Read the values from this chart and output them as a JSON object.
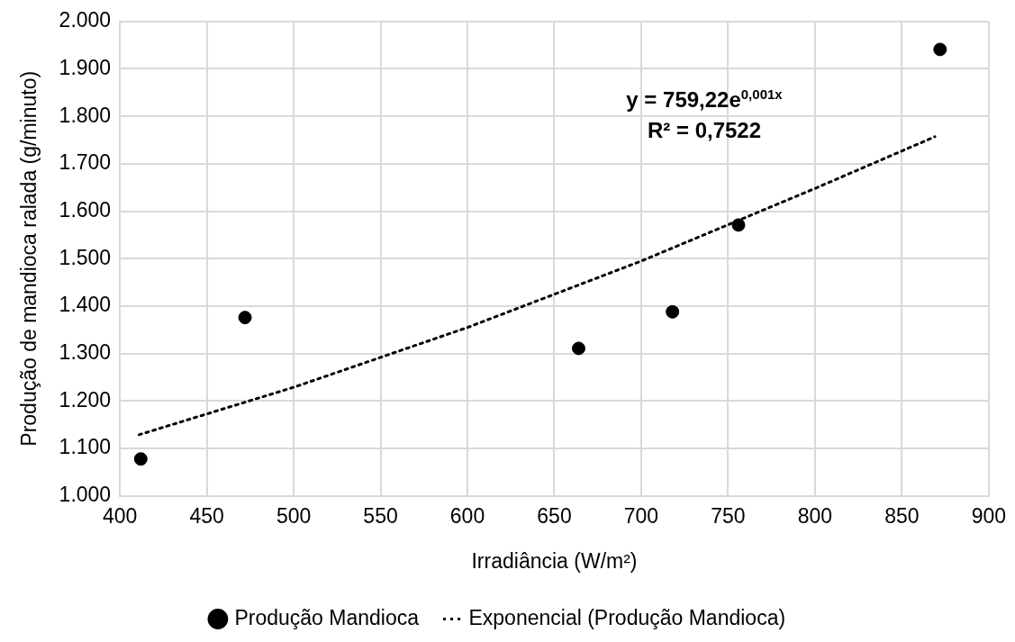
{
  "chart_data": {
    "type": "scatter",
    "xlabel": "Irradiância (W/m²)",
    "ylabel": "Produção de mandioca ralada (g/minuto)",
    "xlim": [
      400,
      900
    ],
    "xticks": [
      400,
      450,
      500,
      550,
      600,
      650,
      700,
      750,
      800,
      850,
      900
    ],
    "ylim": [
      1000,
      2000
    ],
    "yticks": [
      {
        "value": 1000,
        "label": "1.000"
      },
      {
        "value": 1100,
        "label": "1.100"
      },
      {
        "value": 1200,
        "label": "1.200"
      },
      {
        "value": 1300,
        "label": "1.300"
      },
      {
        "value": 1400,
        "label": "1.400"
      },
      {
        "value": 1500,
        "label": "1.500"
      },
      {
        "value": 1600,
        "label": "1.600"
      },
      {
        "value": 1700,
        "label": "1.700"
      },
      {
        "value": 1800,
        "label": "1.800"
      },
      {
        "value": 1900,
        "label": "1.900"
      },
      {
        "value": 2000,
        "label": "2.000"
      }
    ],
    "grid": true,
    "legend": "bottom",
    "series": [
      {
        "name": "Produção Mandioca",
        "color": "#000000",
        "marker": "circle",
        "x": [
          412,
          472,
          664,
          718,
          756,
          872
        ],
        "values": [
          1078,
          1376,
          1311,
          1388,
          1571,
          1941
        ]
      },
      {
        "name": "Exponencial (Produção Mandioca)",
        "type": "line",
        "color": "#000000",
        "marker": "none",
        "line_style": "dotted",
        "x": [
          411,
          500,
          600,
          700,
          800,
          869
        ],
        "values": [
          1129,
          1229,
          1355,
          1495,
          1648,
          1757
        ]
      }
    ],
    "annotations": [
      "y = 759,22e$^{0,001x}$",
      "R² = 0,7522"
    ]
  }
}
